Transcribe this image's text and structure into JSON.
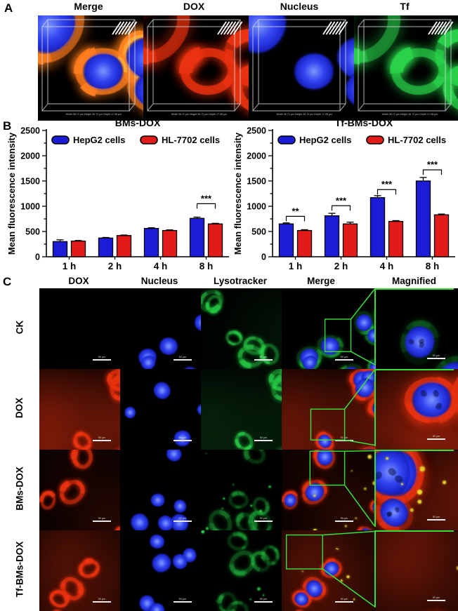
{
  "figure": {
    "panel_a": {
      "label": "A",
      "columns": [
        {
          "title": "Merge"
        },
        {
          "title": "DOX"
        },
        {
          "title": "Nucleus"
        },
        {
          "title": "Tf"
        }
      ],
      "caption": "Width 36.72 μm Height 36.72 μm Depth 17.08 μm"
    },
    "panel_b": {
      "label": "B"
    },
    "panel_c": {
      "label": "C",
      "column_titles": [
        "DOX",
        "Nucleus",
        "Lysotracker",
        "Merge",
        "Magnified"
      ],
      "rows": [
        {
          "label": "CK"
        },
        {
          "label": "DOX"
        },
        {
          "label": "BMs-DOX"
        },
        {
          "label": "Tf-BMs-DOX"
        }
      ],
      "scale_bar_label": "50 μm"
    }
  },
  "chart_data": [
    {
      "type": "bar",
      "title": "BMs-DOX",
      "categories": [
        "1 h",
        "2 h",
        "4 h",
        "8 h"
      ],
      "series": [
        {
          "name": "HepG2 cells",
          "color": "#1c1cd6",
          "values": [
            300,
            370,
            560,
            760
          ],
          "errors": [
            35,
            12,
            15,
            25
          ]
        },
        {
          "name": "HL-7702 cells",
          "color": "#e11a1a",
          "values": [
            310,
            420,
            520,
            650
          ],
          "errors": [
            12,
            10,
            12,
            12
          ]
        }
      ],
      "xlabel": "",
      "ylabel": "Mean fluorescence intensity",
      "ylim": [
        0,
        2500
      ],
      "yticks": [
        0,
        500,
        1000,
        1500,
        2000,
        2500
      ],
      "grid": false,
      "legend_position": "top-inside",
      "significance": [
        {
          "category": "8 h",
          "label": "***",
          "y": 1050
        }
      ]
    },
    {
      "type": "bar",
      "title": "Tf-BMs-DOX",
      "categories": [
        "1 h",
        "2 h",
        "4 h",
        "8 h"
      ],
      "series": [
        {
          "name": "HepG2 cells",
          "color": "#1c1cd6",
          "values": [
            650,
            810,
            1170,
            1500
          ],
          "errors": [
            20,
            50,
            40,
            70
          ]
        },
        {
          "name": "HL-7702 cells",
          "color": "#e11a1a",
          "values": [
            520,
            650,
            700,
            830
          ],
          "errors": [
            15,
            35,
            15,
            15
          ]
        }
      ],
      "xlabel": "",
      "ylabel": "Mean fluorescence intensity",
      "ylim": [
        0,
        2500
      ],
      "yticks": [
        0,
        500,
        1000,
        1500,
        2000,
        2500
      ],
      "grid": false,
      "legend_position": "top-inside",
      "significance": [
        {
          "category": "1 h",
          "label": "**",
          "y": 800
        },
        {
          "category": "2 h",
          "label": "***",
          "y": 1010
        },
        {
          "category": "4 h",
          "label": "***",
          "y": 1330
        },
        {
          "category": "8 h",
          "label": "***",
          "y": 1720
        }
      ]
    }
  ]
}
